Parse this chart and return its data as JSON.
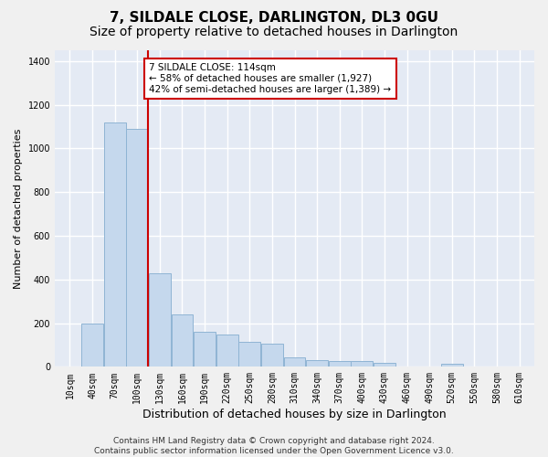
{
  "title": "7, SILDALE CLOSE, DARLINGTON, DL3 0GU",
  "subtitle": "Size of property relative to detached houses in Darlington",
  "xlabel": "Distribution of detached houses by size in Darlington",
  "ylabel": "Number of detached properties",
  "bar_color": "#c5d8ed",
  "bar_edge_color": "#8fb4d4",
  "background_color": "#e4eaf4",
  "grid_color": "#ffffff",
  "fig_background": "#f0f0f0",
  "vline_x": 114,
  "vline_color": "#cc0000",
  "annotation_box_color": "#cc0000",
  "annotation_lines": [
    "7 SILDALE CLOSE: 114sqm",
    "← 58% of detached houses are smaller (1,927)",
    "42% of semi-detached houses are larger (1,389) →"
  ],
  "categories": [
    10,
    40,
    70,
    100,
    130,
    160,
    190,
    220,
    250,
    280,
    310,
    340,
    370,
    400,
    430,
    460,
    490,
    520,
    550,
    580,
    610
  ],
  "values": [
    0,
    200,
    1120,
    1090,
    430,
    240,
    160,
    150,
    115,
    105,
    45,
    30,
    25,
    25,
    20,
    0,
    0,
    15,
    0,
    0,
    0
  ],
  "ylim": [
    0,
    1450
  ],
  "yticks": [
    0,
    200,
    400,
    600,
    800,
    1000,
    1200,
    1400
  ],
  "bin_width": 30,
  "footer_lines": [
    "Contains HM Land Registry data © Crown copyright and database right 2024.",
    "Contains public sector information licensed under the Open Government Licence v3.0."
  ],
  "title_fontsize": 11,
  "subtitle_fontsize": 10,
  "xlabel_fontsize": 9,
  "ylabel_fontsize": 8,
  "tick_fontsize": 7,
  "footer_fontsize": 6.5,
  "annotation_fontsize": 7.5
}
